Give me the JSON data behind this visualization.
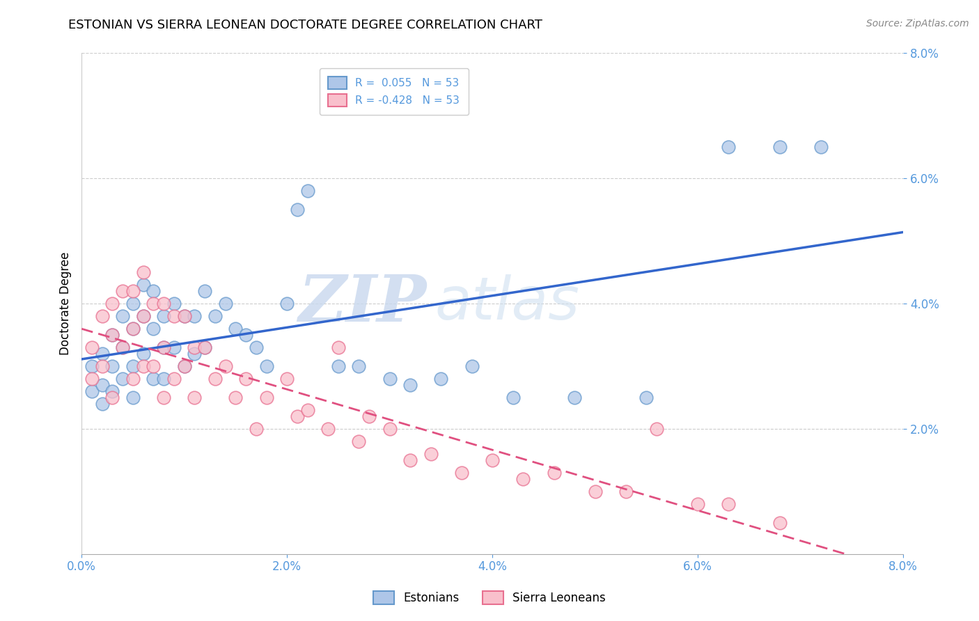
{
  "title": "ESTONIAN VS SIERRA LEONEAN DOCTORATE DEGREE CORRELATION CHART",
  "source": "Source: ZipAtlas.com",
  "ylabel": "Doctorate Degree",
  "xlim": [
    0.0,
    0.08
  ],
  "ylim": [
    0.0,
    0.08
  ],
  "xtick_vals": [
    0.0,
    0.02,
    0.04,
    0.06,
    0.08
  ],
  "ytick_vals": [
    0.02,
    0.04,
    0.06,
    0.08
  ],
  "r_estonian": 0.055,
  "n_estonian": 53,
  "r_sierra": -0.428,
  "n_sierra": 53,
  "estonian_color": "#aec6e8",
  "estonian_edge": "#6699cc",
  "estonian_line_color": "#3366cc",
  "sierra_color": "#f9c0cc",
  "sierra_edge": "#e87090",
  "sierra_line_color": "#e05080",
  "tick_color": "#5599dd",
  "background_color": "#ffffff",
  "watermark_zip": "ZIP",
  "watermark_atlas": "atlas",
  "title_fontsize": 13,
  "legend_fontsize": 11,
  "estonian_x": [
    0.001,
    0.001,
    0.002,
    0.002,
    0.002,
    0.003,
    0.003,
    0.003,
    0.004,
    0.004,
    0.004,
    0.005,
    0.005,
    0.005,
    0.005,
    0.006,
    0.006,
    0.006,
    0.007,
    0.007,
    0.007,
    0.008,
    0.008,
    0.008,
    0.009,
    0.009,
    0.01,
    0.01,
    0.011,
    0.011,
    0.012,
    0.012,
    0.013,
    0.014,
    0.015,
    0.016,
    0.017,
    0.018,
    0.02,
    0.021,
    0.022,
    0.025,
    0.027,
    0.03,
    0.032,
    0.035,
    0.038,
    0.042,
    0.048,
    0.055,
    0.063,
    0.068,
    0.072
  ],
  "estonian_y": [
    0.03,
    0.026,
    0.032,
    0.027,
    0.024,
    0.035,
    0.03,
    0.026,
    0.038,
    0.033,
    0.028,
    0.04,
    0.036,
    0.03,
    0.025,
    0.043,
    0.038,
    0.032,
    0.042,
    0.036,
    0.028,
    0.038,
    0.033,
    0.028,
    0.04,
    0.033,
    0.038,
    0.03,
    0.038,
    0.032,
    0.042,
    0.033,
    0.038,
    0.04,
    0.036,
    0.035,
    0.033,
    0.03,
    0.04,
    0.055,
    0.058,
    0.03,
    0.03,
    0.028,
    0.027,
    0.028,
    0.03,
    0.025,
    0.025,
    0.025,
    0.065,
    0.065,
    0.065
  ],
  "sierra_x": [
    0.001,
    0.001,
    0.002,
    0.002,
    0.003,
    0.003,
    0.003,
    0.004,
    0.004,
    0.005,
    0.005,
    0.005,
    0.006,
    0.006,
    0.006,
    0.007,
    0.007,
    0.008,
    0.008,
    0.008,
    0.009,
    0.009,
    0.01,
    0.01,
    0.011,
    0.011,
    0.012,
    0.013,
    0.014,
    0.015,
    0.016,
    0.017,
    0.018,
    0.02,
    0.021,
    0.022,
    0.024,
    0.025,
    0.027,
    0.028,
    0.03,
    0.032,
    0.034,
    0.037,
    0.04,
    0.043,
    0.046,
    0.05,
    0.053,
    0.056,
    0.06,
    0.063,
    0.068
  ],
  "sierra_y": [
    0.033,
    0.028,
    0.038,
    0.03,
    0.04,
    0.035,
    0.025,
    0.042,
    0.033,
    0.042,
    0.036,
    0.028,
    0.045,
    0.038,
    0.03,
    0.04,
    0.03,
    0.04,
    0.033,
    0.025,
    0.038,
    0.028,
    0.038,
    0.03,
    0.033,
    0.025,
    0.033,
    0.028,
    0.03,
    0.025,
    0.028,
    0.02,
    0.025,
    0.028,
    0.022,
    0.023,
    0.02,
    0.033,
    0.018,
    0.022,
    0.02,
    0.015,
    0.016,
    0.013,
    0.015,
    0.012,
    0.013,
    0.01,
    0.01,
    0.02,
    0.008,
    0.008,
    0.005
  ]
}
